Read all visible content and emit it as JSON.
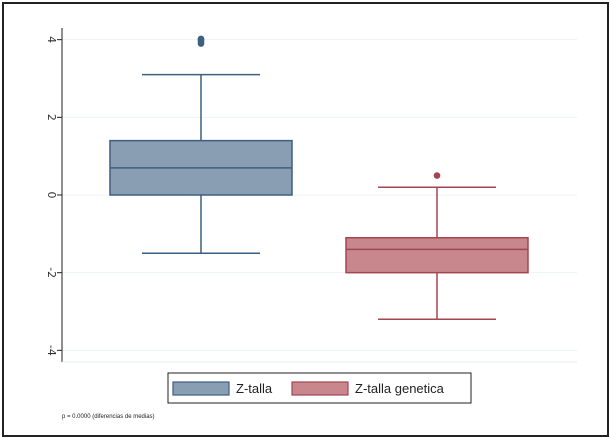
{
  "chart_data": {
    "type": "box",
    "title": "",
    "xlabel": "",
    "ylabel": "",
    "ylim": [
      -4.3,
      4.3
    ],
    "yticks": [
      4,
      2,
      0,
      -2,
      -4
    ],
    "ytick_labels": [
      "4",
      "2",
      "0",
      "-2",
      "-4"
    ],
    "grid": true,
    "legend_position": "bottom",
    "series": [
      {
        "name": "Z-talla",
        "color_fill": "#8a9eb3",
        "color_line": "#3d5f80",
        "min": -1.5,
        "q1": 0.0,
        "median": 0.7,
        "q3": 1.4,
        "max": 3.1,
        "outliers": [
          3.9,
          3.95,
          4.0,
          4.02
        ]
      },
      {
        "name": "Z-talla genetica",
        "color_fill": "#c7878d",
        "color_line": "#a34650",
        "min": -3.2,
        "q1": -2.0,
        "median": -1.4,
        "q3": -1.1,
        "max": 0.2,
        "outliers": [
          0.5
        ]
      }
    ],
    "note": "p = 0.0000 (diferencias de medias)"
  }
}
